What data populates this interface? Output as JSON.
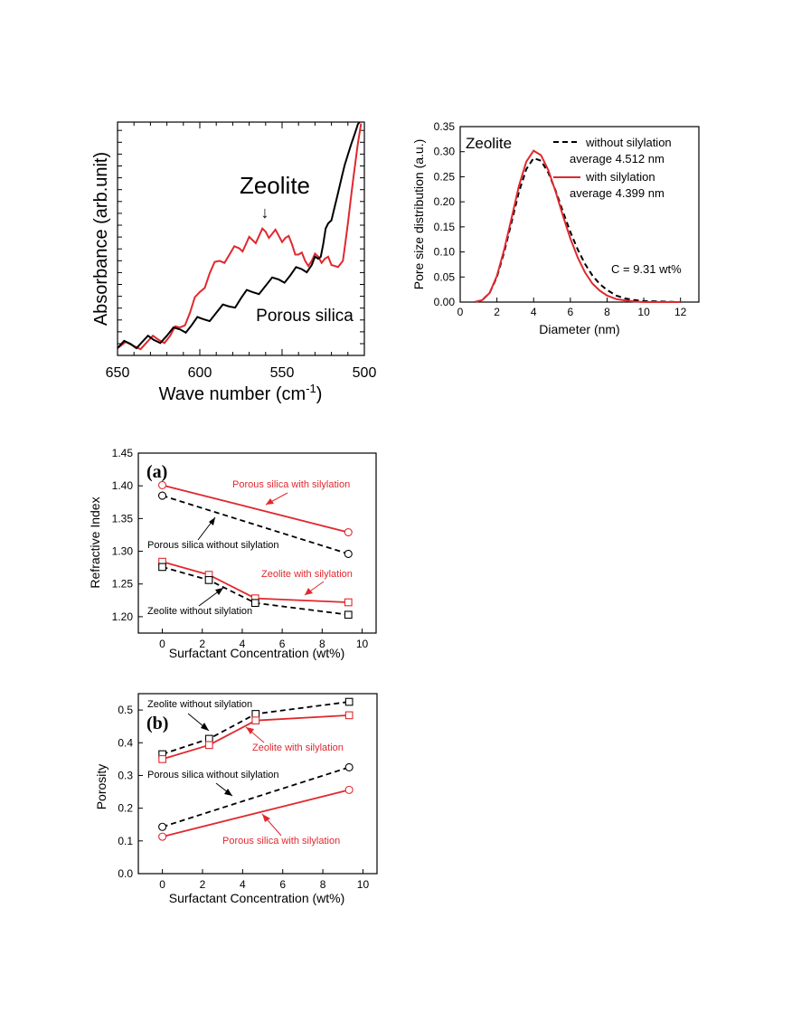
{
  "colors": {
    "red": "#e0282e",
    "black": "#000000"
  },
  "chart_data": [
    {
      "id": "ir",
      "type": "line",
      "xlabel": "Wave number (cm",
      "xlabel_sup": "-1",
      "xlabel_end": ")",
      "ylabel": "Absorbance (arb.unit)",
      "xlim": [
        650,
        500
      ],
      "x_ticks": [
        "650",
        "600",
        "550",
        "500"
      ],
      "x_tick_values": [
        650,
        600,
        550,
        500
      ],
      "y_tick_labels_shown": false,
      "annotations": {
        "zeolite": "Zeolite",
        "arrow": "↓",
        "porous": "Porous silica"
      },
      "series": [
        {
          "color": "#e0282e",
          "x": [
            650,
            640,
            632,
            625,
            618,
            612,
            606,
            600,
            594,
            588,
            582,
            576,
            572,
            568,
            564,
            560,
            556,
            552,
            548,
            544,
            540,
            536,
            532,
            528,
            524,
            520,
            516,
            513,
            510,
            507,
            504,
            502
          ],
          "y": [
            0.0,
            0.01,
            0.03,
            0.04,
            0.06,
            0.1,
            0.17,
            0.27,
            0.36,
            0.42,
            0.45,
            0.48,
            0.5,
            0.52,
            0.54,
            0.56,
            0.55,
            0.54,
            0.53,
            0.5,
            0.45,
            0.42,
            0.42,
            0.44,
            0.43,
            0.4,
            0.39,
            0.42,
            0.6,
            0.8,
            0.98,
            1.08
          ]
        },
        {
          "color": "#000000",
          "x": [
            650,
            642,
            635,
            628,
            620,
            612,
            605,
            598,
            590,
            582,
            575,
            568,
            560,
            552,
            545,
            538,
            532,
            528,
            525,
            522,
            518,
            515,
            512,
            508,
            505,
            503
          ],
          "y": [
            0.0,
            0.02,
            0.03,
            0.04,
            0.06,
            0.09,
            0.11,
            0.14,
            0.17,
            0.2,
            0.24,
            0.27,
            0.3,
            0.33,
            0.35,
            0.38,
            0.4,
            0.43,
            0.5,
            0.6,
            0.68,
            0.78,
            0.88,
            0.98,
            1.05,
            1.1
          ]
        }
      ]
    },
    {
      "id": "psd",
      "type": "line",
      "xlabel": "Diameter (nm)",
      "ylabel": "Pore size distribution (a.u.)",
      "xlim": [
        0,
        13
      ],
      "ylim": [
        0,
        0.35
      ],
      "x_ticks": [
        "0",
        "2",
        "4",
        "6",
        "8",
        "10",
        "12"
      ],
      "x_tick_values": [
        0,
        2,
        4,
        6,
        8,
        10,
        12
      ],
      "y_ticks": [
        "0.00",
        "0.05",
        "0.10",
        "0.15",
        "0.20",
        "0.25",
        "0.30",
        "0.35"
      ],
      "y_tick_values": [
        0,
        0.05,
        0.1,
        0.15,
        0.2,
        0.25,
        0.3,
        0.35
      ],
      "annotations": {
        "title": "Zeolite",
        "c": "C = 9.31 wt%"
      },
      "series": [
        {
          "name": "without silylation",
          "note": "average 4.512 nm",
          "color": "#000000",
          "dashed": true,
          "x": [
            0.8,
            1.2,
            1.6,
            2.0,
            2.4,
            2.8,
            3.2,
            3.6,
            4.0,
            4.4,
            4.8,
            5.2,
            5.6,
            6.0,
            6.4,
            6.8,
            7.2,
            7.6,
            8.0,
            8.5,
            9.0,
            9.5,
            10.0,
            11.0,
            12.0
          ],
          "y": [
            0.0,
            0.004,
            0.018,
            0.05,
            0.1,
            0.16,
            0.22,
            0.265,
            0.287,
            0.282,
            0.258,
            0.222,
            0.18,
            0.14,
            0.105,
            0.076,
            0.053,
            0.036,
            0.024,
            0.013,
            0.007,
            0.004,
            0.002,
            0.001,
            0.0
          ]
        },
        {
          "name": "with silylation",
          "note": "average 4.399 nm",
          "color": "#e0282e",
          "dashed": false,
          "x": [
            0.8,
            1.2,
            1.6,
            2.0,
            2.4,
            2.8,
            3.2,
            3.6,
            4.0,
            4.4,
            4.8,
            5.2,
            5.6,
            6.0,
            6.4,
            6.8,
            7.2,
            7.6,
            8.0,
            8.5,
            9.0,
            9.5,
            10.0,
            11.0,
            12.0
          ],
          "y": [
            0.0,
            0.004,
            0.018,
            0.052,
            0.105,
            0.168,
            0.232,
            0.28,
            0.302,
            0.293,
            0.263,
            0.22,
            0.172,
            0.127,
            0.089,
            0.059,
            0.037,
            0.023,
            0.013,
            0.006,
            0.003,
            0.001,
            0.0,
            0.0,
            0.0
          ]
        }
      ]
    },
    {
      "id": "ri",
      "type": "line",
      "panel_label": "(a)",
      "xlabel": "Surfactant Concentration (wt%)",
      "ylabel": "Refractive Index",
      "xlim": [
        -1.2,
        10.7
      ],
      "ylim": [
        1.175,
        1.45
      ],
      "x_ticks": [
        "0",
        "2",
        "4",
        "6",
        "8",
        "10"
      ],
      "x_tick_values": [
        0,
        2,
        4,
        6,
        8,
        10
      ],
      "y_ticks": [
        "1.20",
        "1.25",
        "1.30",
        "1.35",
        "1.40",
        "1.45"
      ],
      "y_tick_values": [
        1.2,
        1.25,
        1.3,
        1.35,
        1.4,
        1.45
      ],
      "series": [
        {
          "name": "Porous silica with silylation",
          "color": "#e0282e",
          "dashed": false,
          "marker": "circle",
          "x": [
            0,
            9.31
          ],
          "y": [
            1.401,
            1.329
          ]
        },
        {
          "name": "Porous silica without silylation",
          "color": "#000000",
          "dashed": true,
          "marker": "circle",
          "x": [
            0,
            9.31
          ],
          "y": [
            1.385,
            1.296
          ]
        },
        {
          "name": "Zeolite with silylation",
          "color": "#e0282e",
          "dashed": false,
          "marker": "square",
          "x": [
            0,
            2.33,
            4.65,
            9.31
          ],
          "y": [
            1.284,
            1.264,
            1.228,
            1.222
          ]
        },
        {
          "name": "Zeolite without silylation",
          "color": "#000000",
          "dashed": true,
          "marker": "square",
          "x": [
            0,
            2.33,
            4.65,
            9.31
          ],
          "y": [
            1.276,
            1.256,
            1.221,
            1.203
          ]
        }
      ]
    },
    {
      "id": "porosity",
      "type": "line",
      "panel_label": "(b)",
      "xlabel": "Surfactant Concentration (wt%)",
      "ylabel": "Porosity",
      "xlim": [
        -1.2,
        10.7
      ],
      "ylim": [
        0,
        0.55
      ],
      "x_ticks": [
        "0",
        "2",
        "4",
        "6",
        "8",
        "10"
      ],
      "x_tick_values": [
        0,
        2,
        4,
        6,
        8,
        10
      ],
      "y_ticks": [
        "0.0",
        "0.1",
        "0.2",
        "0.3",
        "0.4",
        "0.5"
      ],
      "y_tick_values": [
        0,
        0.1,
        0.2,
        0.3,
        0.4,
        0.5
      ],
      "series": [
        {
          "name": "Zeolite without silylation",
          "color": "#000000",
          "dashed": true,
          "marker": "square",
          "x": [
            0,
            2.33,
            4.65,
            9.31
          ],
          "y": [
            0.365,
            0.412,
            0.488,
            0.525
          ]
        },
        {
          "name": "Zeolite with silylation",
          "color": "#e0282e",
          "dashed": false,
          "marker": "square",
          "x": [
            0,
            2.33,
            4.65,
            9.31
          ],
          "y": [
            0.35,
            0.393,
            0.468,
            0.484
          ]
        },
        {
          "name": "Porous silica without silylation",
          "color": "#000000",
          "dashed": true,
          "marker": "circle",
          "x": [
            0,
            9.31
          ],
          "y": [
            0.143,
            0.325
          ]
        },
        {
          "name": "Porous silica with silylation",
          "color": "#e0282e",
          "dashed": false,
          "marker": "circle",
          "x": [
            0,
            9.31
          ],
          "y": [
            0.113,
            0.256
          ]
        }
      ]
    }
  ]
}
